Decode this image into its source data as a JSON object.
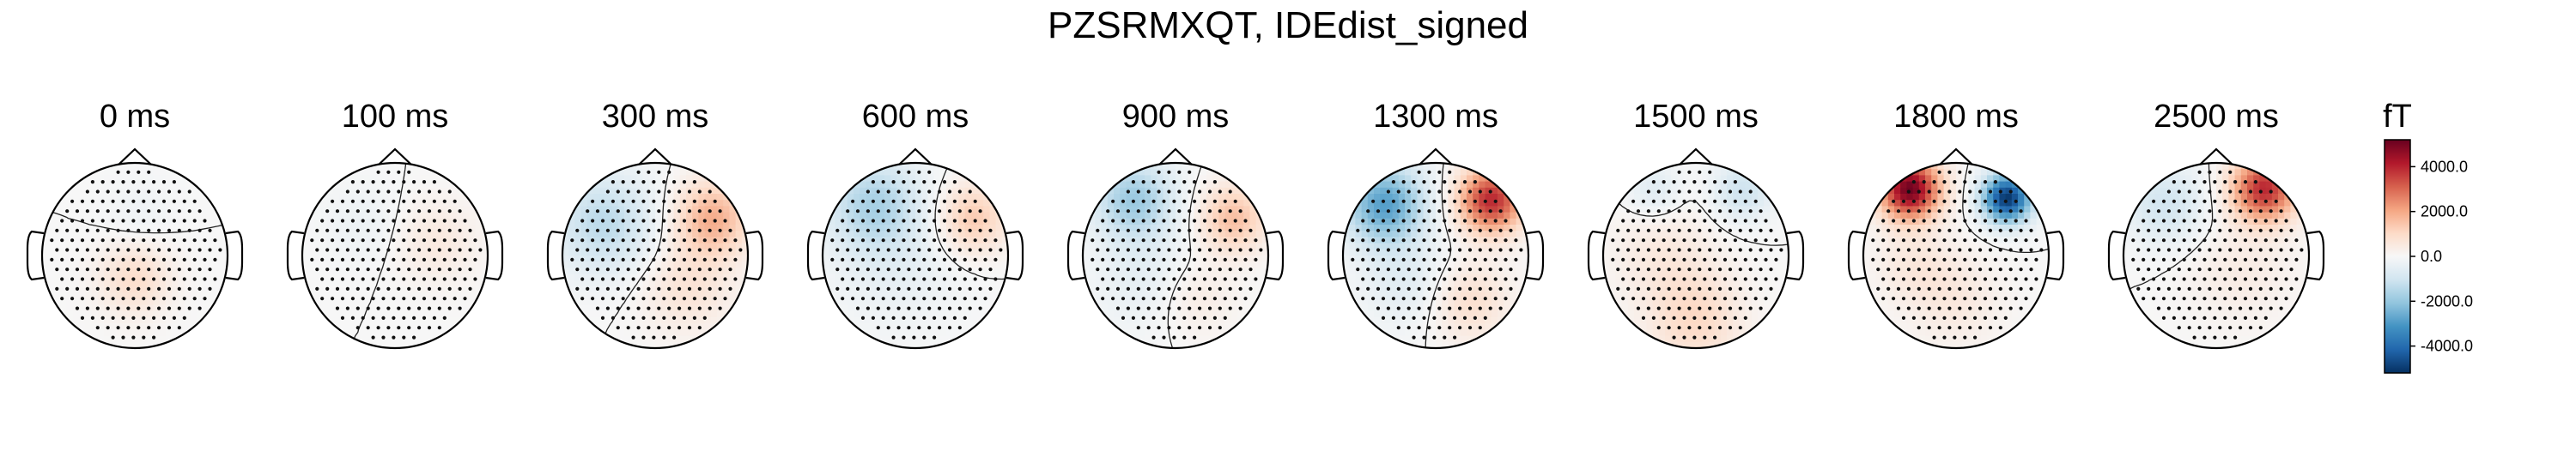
{
  "chart_data": {
    "type": "heatmap",
    "title": "PZSRMXQT, IDEdist_signed",
    "panels": [
      {
        "label": "0 ms",
        "blobs": [
          [
            0.0,
            0.25,
            0.28,
            900
          ],
          [
            0.05,
            -0.45,
            0.25,
            -250
          ]
        ]
      },
      {
        "label": "100 ms",
        "blobs": [
          [
            0.45,
            -0.15,
            0.32,
            500
          ],
          [
            -0.35,
            -0.35,
            0.3,
            -300
          ]
        ]
      },
      {
        "label": "300 ms",
        "blobs": [
          [
            0.62,
            -0.4,
            0.28,
            1900
          ],
          [
            0.35,
            0.35,
            0.35,
            700
          ],
          [
            -0.55,
            -0.35,
            0.38,
            -1400
          ]
        ]
      },
      {
        "label": "600 ms",
        "blobs": [
          [
            0.62,
            -0.4,
            0.26,
            1400
          ],
          [
            -0.45,
            -0.55,
            0.35,
            -1600
          ],
          [
            -0.2,
            0.1,
            0.5,
            -400
          ]
        ]
      },
      {
        "label": "900 ms",
        "blobs": [
          [
            0.62,
            -0.4,
            0.25,
            1600
          ],
          [
            0.2,
            0.45,
            0.3,
            500
          ],
          [
            -0.45,
            -0.6,
            0.3,
            -1900
          ],
          [
            -0.3,
            0.25,
            0.4,
            -500
          ]
        ]
      },
      {
        "label": "1300 ms",
        "blobs": [
          [
            0.6,
            -0.6,
            0.24,
            4000
          ],
          [
            0.35,
            0.5,
            0.3,
            900
          ],
          [
            -0.55,
            -0.55,
            0.3,
            -2900
          ],
          [
            -0.3,
            0.3,
            0.35,
            -600
          ]
        ]
      },
      {
        "label": "1500 ms",
        "blobs": [
          [
            0.0,
            0.7,
            0.35,
            1000
          ],
          [
            -0.35,
            0.0,
            0.4,
            500
          ],
          [
            0.5,
            -0.7,
            0.22,
            -1100
          ],
          [
            -0.45,
            -0.7,
            0.2,
            -700
          ]
        ]
      },
      {
        "label": "1800 ms",
        "blobs": [
          [
            -0.5,
            -0.72,
            0.22,
            5200
          ],
          [
            0.55,
            -0.62,
            0.18,
            -5200
          ],
          [
            0.0,
            0.5,
            0.35,
            500
          ],
          [
            -0.45,
            0.1,
            0.3,
            500
          ]
        ]
      },
      {
        "label": "2500 ms",
        "blobs": [
          [
            0.52,
            -0.72,
            0.24,
            4000
          ],
          [
            -0.55,
            -0.55,
            0.3,
            -1000
          ],
          [
            0.25,
            0.2,
            0.4,
            400
          ]
        ]
      }
    ],
    "colorbar": {
      "unit": "fT",
      "range": [
        -5200,
        5200
      ],
      "ticks": [
        4000,
        2000,
        0,
        -2000,
        -4000
      ],
      "tick_labels": [
        "4000.0",
        "2000.0",
        "0.0",
        "-2000.0",
        "-4000.0"
      ],
      "colormap": "RdBu_r"
    }
  }
}
